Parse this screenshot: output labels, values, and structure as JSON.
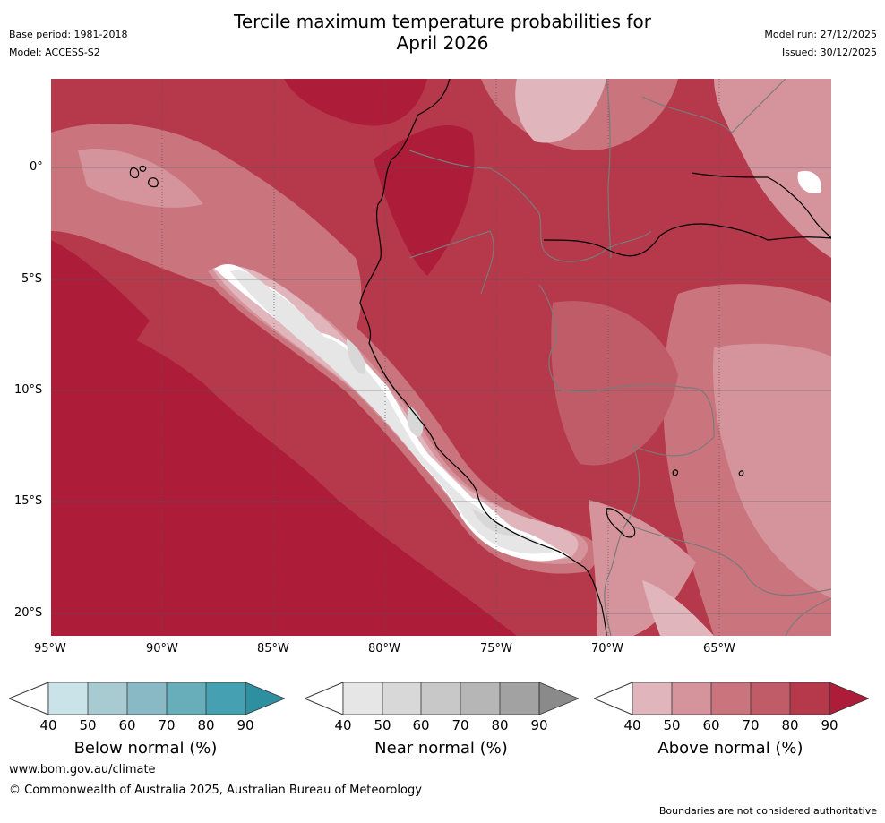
{
  "title_line1": "Tercile maximum temperature probabilities for",
  "title_line2": "April 2026",
  "base_period": "Base period: 1981-2018",
  "model": "Model: ACCESS-S2",
  "model_run": "Model run: 27/12/2025",
  "issued": "Issued: 30/12/2025",
  "lat_ticks": [
    "0°",
    "5°S",
    "10°S",
    "15°S",
    "20°S"
  ],
  "lon_ticks": [
    "95°W",
    "90°W",
    "85°W",
    "80°W",
    "75°W",
    "70°W",
    "65°W"
  ],
  "colorbars": [
    {
      "label": "Below normal (%)",
      "ticks": [
        "40",
        "50",
        "60",
        "70",
        "80",
        "90"
      ],
      "colors": [
        "#c9e3e8",
        "#a8cbd2",
        "#88b9c5",
        "#68adba",
        "#45a1b1",
        "#2d8fa0"
      ]
    },
    {
      "label": "Near normal (%)",
      "ticks": [
        "40",
        "50",
        "60",
        "70",
        "80",
        "90"
      ],
      "colors": [
        "#e6e6e6",
        "#d8d8d8",
        "#c8c8c8",
        "#b6b6b6",
        "#a2a2a2",
        "#8a8a8a"
      ]
    },
    {
      "label": "Above normal (%)",
      "ticks": [
        "40",
        "50",
        "60",
        "70",
        "80",
        "90"
      ],
      "colors": [
        "#e1b5bc",
        "#d5949c",
        "#ca747e",
        "#c05c68",
        "#b6384b",
        "#ad1c39"
      ]
    }
  ],
  "footer_url": "www.bom.gov.au/climate",
  "footer_copyright": "© Commonwealth of Australia 2025, Australian Bureau of Meteorology",
  "footer_disclaimer": "Boundaries are not considered authoritative"
}
